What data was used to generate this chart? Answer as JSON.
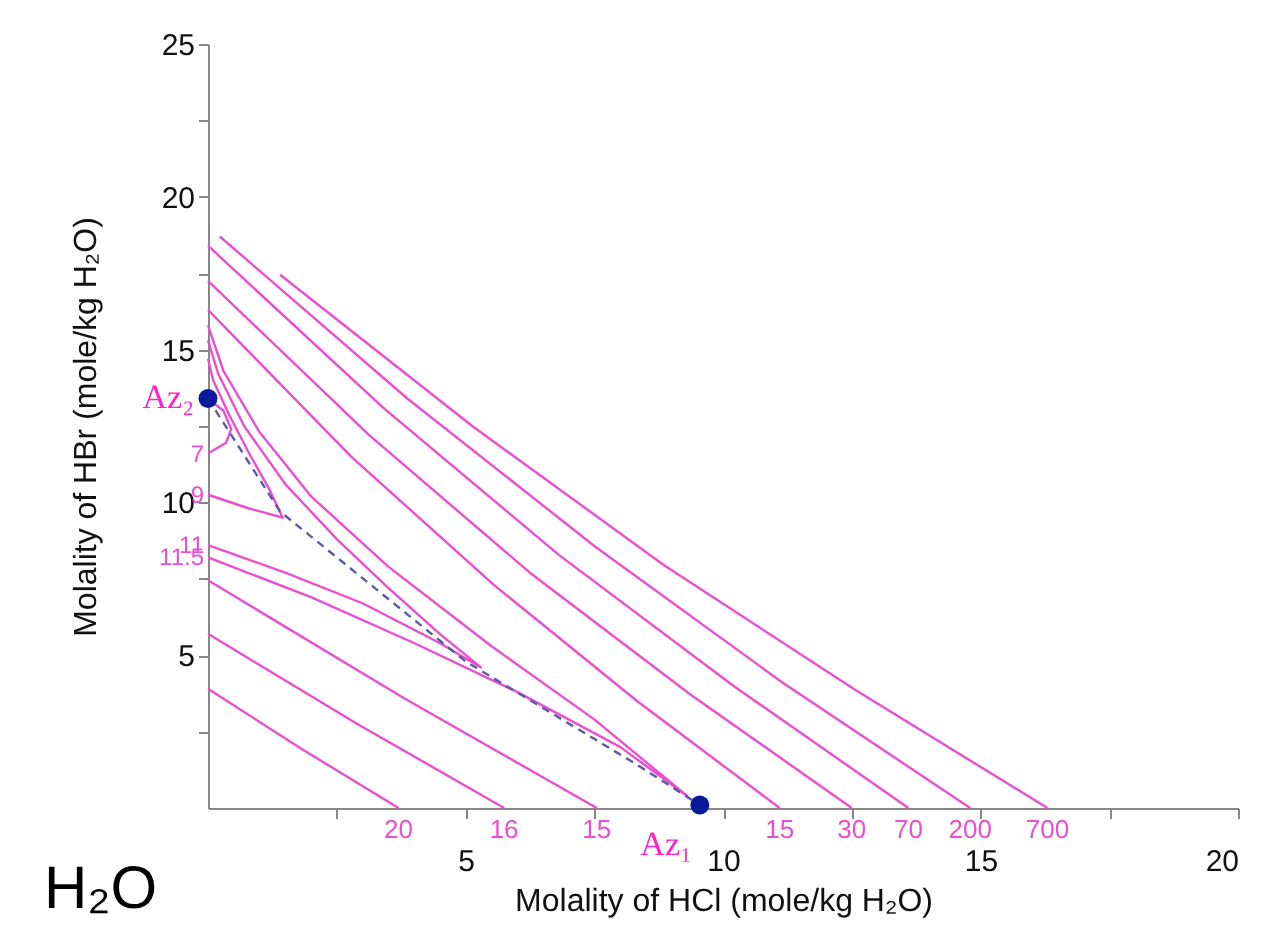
{
  "chart_data": {
    "type": "line",
    "xlabel": "Molality of HCl (mole/kg H₂O)",
    "ylabel": "Molality of HBr (mole/kg H₂O)",
    "xlim": [
      0,
      20
    ],
    "ylim": [
      0,
      25
    ],
    "xticks": [
      {
        "value": 2.5,
        "label": null
      },
      5,
      {
        "value": 7.5,
        "label": null
      },
      10,
      {
        "value": 12.5,
        "label": null
      },
      15,
      {
        "value": 17.5,
        "label": null
      },
      20
    ],
    "yticks": [
      {
        "value": 2.5,
        "label": null
      },
      5,
      {
        "value": 7.5,
        "label": null
      },
      10,
      {
        "value": 12.5,
        "label": null
      },
      15,
      {
        "value": 17.5,
        "label": null
      },
      20,
      {
        "value": 22.5,
        "label": null
      },
      25
    ],
    "grid": false,
    "line_style": "solid",
    "marker": "none",
    "series": [
      {
        "name": "20",
        "color": "#ea4fd0",
        "x": [
          0,
          1.85,
          3.7
        ],
        "values": [
          3.9,
          1.9,
          0
        ]
      },
      {
        "name": "16",
        "color": "#ea4fd0",
        "x": [
          0,
          2.9,
          5.75
        ],
        "values": [
          5.7,
          2.75,
          0
        ]
      },
      {
        "name": "15",
        "color": "#ea4fd0",
        "x": [
          0,
          3.8,
          7.55
        ],
        "values": [
          7.45,
          3.6,
          0
        ]
      },
      {
        "name": "11.5",
        "color": "#ea4fd0",
        "x": [
          0,
          2,
          4,
          6,
          8,
          9.3,
          7.5,
          5.5,
          3.5,
          2,
          1,
          0.3,
          0
        ],
        "values": [
          8.2,
          6.9,
          5.4,
          3.8,
          2.0,
          0.4,
          2.9,
          5.3,
          7.9,
          10.2,
          12.3,
          14.3,
          15.8
        ]
      },
      {
        "name": "11",
        "color": "#ea4fd0",
        "x": [
          0,
          1.5,
          3,
          4.5,
          5.3,
          4.5,
          3.5,
          2.5,
          1.5,
          0.7,
          0.2,
          0
        ],
        "values": [
          8.6,
          7.7,
          6.7,
          5.4,
          4.6,
          5.7,
          7.2,
          8.8,
          10.6,
          12.5,
          14.2,
          15.3
        ]
      },
      {
        "name": "9",
        "color": "#ea4fd0",
        "x": [
          0,
          0.8,
          1.45,
          1.2,
          0.8,
          0.4,
          0.1,
          0
        ],
        "values": [
          10.25,
          9.8,
          9.5,
          10.4,
          11.6,
          12.9,
          14.0,
          14.7
        ]
      },
      {
        "name": "7",
        "color": "#ea4fd0",
        "x": [
          0,
          0.35,
          0.45,
          0.3,
          0
        ],
        "values": [
          11.6,
          11.95,
          12.4,
          13.0,
          13.4
        ]
      },
      {
        "name": "15",
        "color": "#ea4fd0",
        "x": [
          0,
          2.78,
          5.55,
          8.33,
          11.1
        ],
        "values": [
          16.3,
          11.5,
          7.3,
          3.5,
          0
        ]
      },
      {
        "name": "30",
        "color": "#ea4fd0",
        "x": [
          0,
          3.13,
          6.25,
          9.38,
          12.5
        ],
        "values": [
          17.25,
          12.2,
          7.7,
          3.7,
          0
        ]
      },
      {
        "name": "70",
        "color": "#ea4fd0",
        "x": [
          0,
          3.4,
          6.8,
          10.2,
          13.6
        ],
        "values": [
          18.4,
          13.1,
          8.3,
          4.0,
          0
        ]
      },
      {
        "name": "200",
        "color": "#ea4fd0",
        "x": [
          0.23,
          3.87,
          7.52,
          11.16,
          14.8
        ],
        "values": [
          18.7,
          13.4,
          8.55,
          4.1,
          0
        ]
      },
      {
        "name": "700",
        "color": "#ea4fd0",
        "x": [
          1.4,
          5.13,
          8.85,
          12.58,
          16.3
        ],
        "values": [
          17.45,
          12.5,
          7.95,
          3.85,
          0
        ]
      },
      {
        "color": "#5a5aa8",
        "line_style": "dashed",
        "x": [
          0,
          1.4,
          5.0,
          8.3,
          9.55
        ],
        "values": [
          13.4,
          9.7,
          4.8,
          1.45,
          0.1
        ]
      },
      {
        "type": "scatter",
        "marker": "circle",
        "color": "#0a1a9a",
        "x": [
          9.55,
          0
        ],
        "values": [
          0.1,
          13.4
        ]
      }
    ],
    "annotations": [
      {
        "text": "Az₁",
        "x": 9.55,
        "y": 0.1
      },
      {
        "text": "Az₂",
        "x": 0,
        "y": 13.4
      },
      "H₂O"
    ]
  }
}
